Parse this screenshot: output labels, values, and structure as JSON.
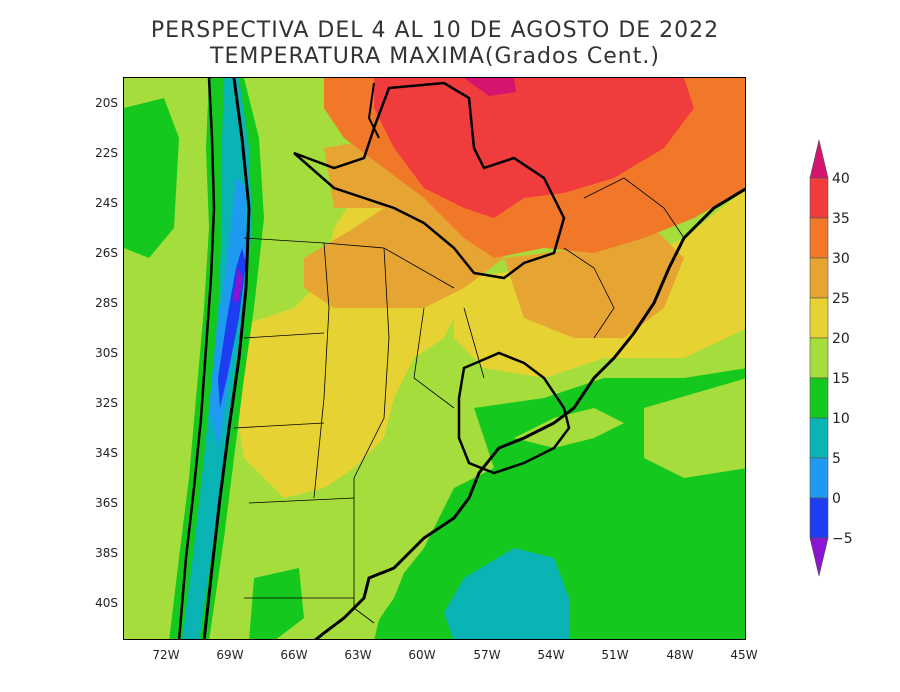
{
  "title": {
    "line1": "PERSPECTIVA DEL 4 AL 10 DE AGOSTO DE 2022",
    "line2": "TEMPERATURA MAXIMA(Grados Cent.)"
  },
  "map": {
    "projection": "lat-lon",
    "lon_range": [
      -74,
      -45
    ],
    "lat_range": [
      -42,
      -19
    ]
  },
  "lat_labels": [
    "20S",
    "22S",
    "24S",
    "26S",
    "28S",
    "30S",
    "32S",
    "34S",
    "36S",
    "38S",
    "40S"
  ],
  "lon_labels": [
    "72W",
    "69W",
    "66W",
    "63W",
    "60W",
    "57W",
    "54W",
    "51W",
    "48W",
    "45W"
  ],
  "colorbar": {
    "labels": [
      "40",
      "35",
      "30",
      "25",
      "20",
      "15",
      "10",
      "5",
      "0",
      "−5"
    ],
    "colors": [
      "#d4146e",
      "#f03c3c",
      "#f07828",
      "#e6a532",
      "#e6d232",
      "#a5de3c",
      "#14c81e",
      "#0ab4b4",
      "#1e9bf0",
      "#1e3cf0",
      "#8c14d2"
    ]
  }
}
